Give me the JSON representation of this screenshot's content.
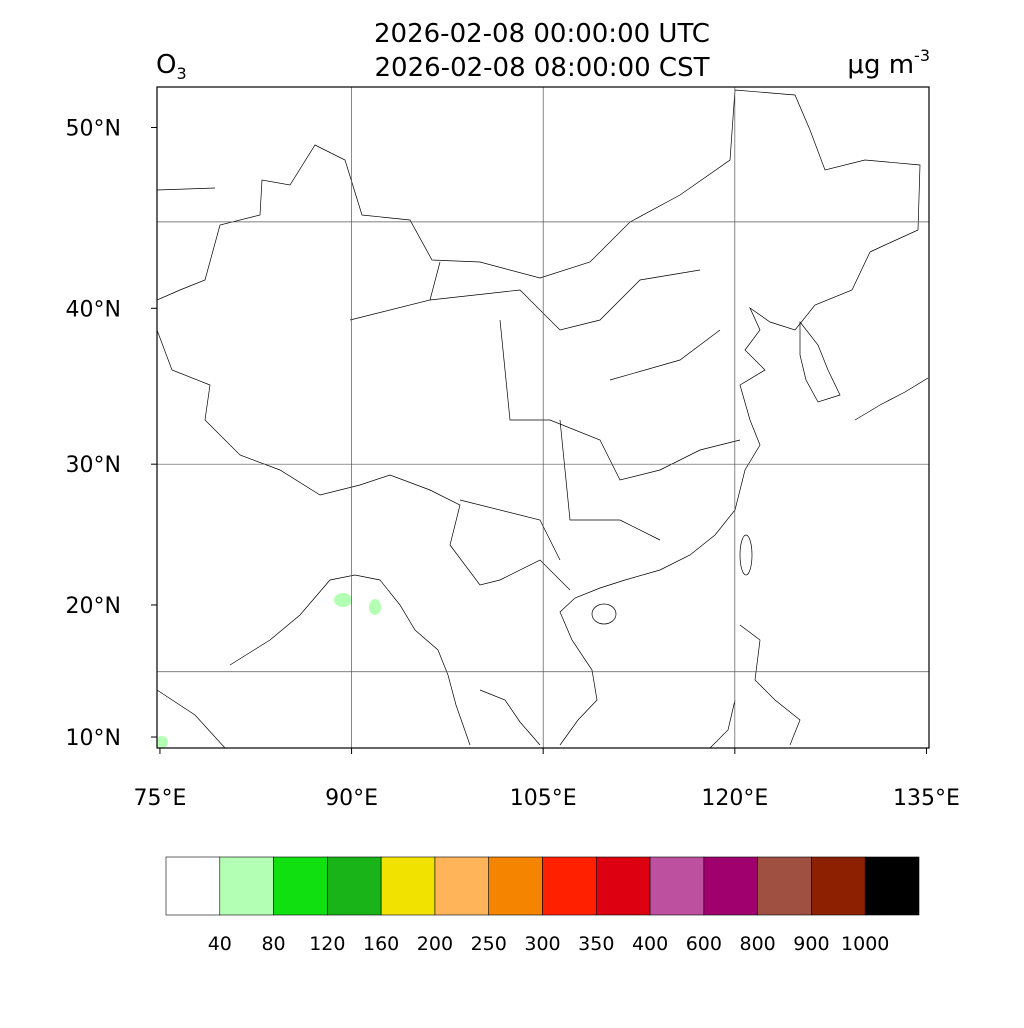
{
  "header": {
    "title_lines": [
      "2026-02-08 00:00:00 UTC",
      "2026-02-08 08:00:00 CST"
    ],
    "variable": {
      "symbol": "O",
      "subscript": "3"
    },
    "units": {
      "base": "μg m",
      "superscript": "-3"
    }
  },
  "map": {
    "projection": "mercator",
    "xlim": [
      74.77,
      135.2
    ],
    "ylim": [
      9.15,
      52.0
    ],
    "xticks": [
      {
        "value": 75,
        "label": "75°E"
      },
      {
        "value": 90,
        "label": "90°E"
      },
      {
        "value": 105,
        "label": "105°E"
      },
      {
        "value": 120,
        "label": "120°E"
      },
      {
        "value": 135,
        "label": "135°E"
      }
    ],
    "yticks": [
      {
        "value": 10,
        "label": "10°N"
      },
      {
        "value": 20,
        "label": "20°N"
      },
      {
        "value": 30,
        "label": "30°N"
      },
      {
        "value": 40,
        "label": "40°N"
      },
      {
        "value": 50,
        "label": "50°N"
      }
    ],
    "grid_lon": [
      90,
      105,
      120
    ],
    "grid_lat": [
      15,
      30,
      45
    ]
  },
  "colorbar": {
    "colors": [
      "#ffffff",
      "#b3ffb3",
      "#10e010",
      "#18b418",
      "#f2e200",
      "#ffb45a",
      "#f58400",
      "#ff2000",
      "#dc0010",
      "#be50a0",
      "#a0006e",
      "#a05040",
      "#8c2000",
      "#000000"
    ],
    "levels": [
      40,
      80,
      120,
      160,
      200,
      250,
      300,
      350,
      400,
      600,
      800,
      900,
      1000
    ]
  }
}
